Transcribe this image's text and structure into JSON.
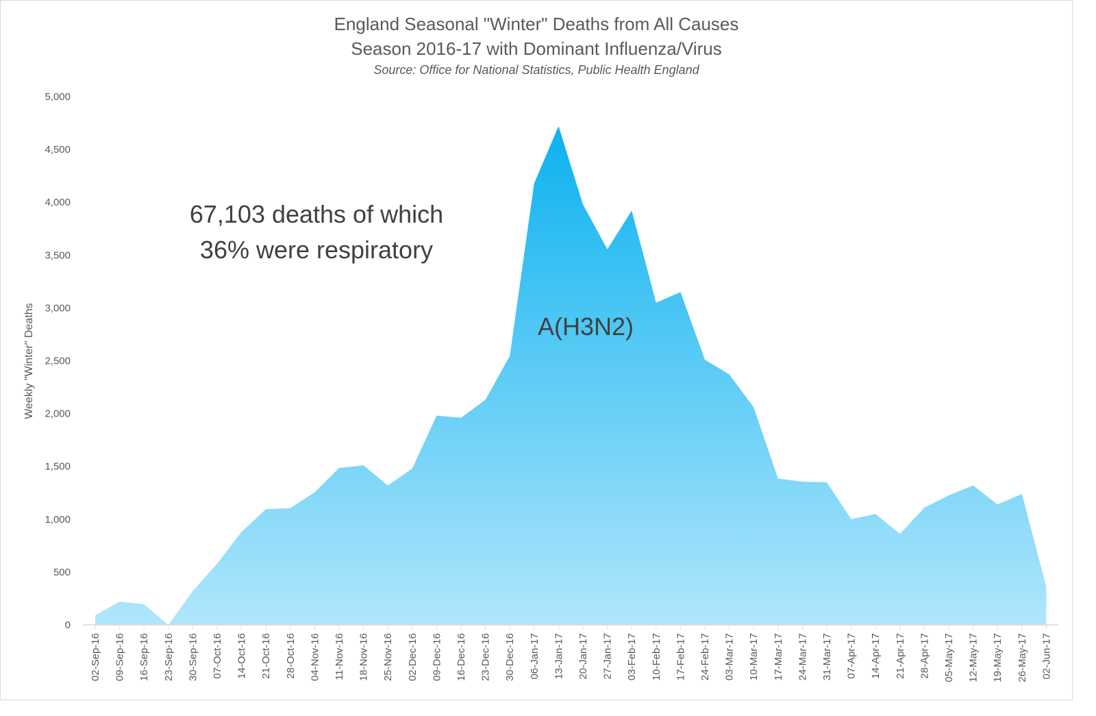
{
  "chart_data": {
    "type": "area",
    "title": "England Seasonal \"Winter\" Deaths from All Causes",
    "subtitle": "Season 2016-17 with Dominant Influenza/Virus",
    "source": "Source: Office for National Statistics, Public Health England",
    "xlabel": "",
    "ylabel": "Weekly \"Winter\" Deaths",
    "ylim": [
      0,
      5000
    ],
    "yticks": [
      "0",
      "500",
      "1,000",
      "1,500",
      "2,000",
      "2,500",
      "3,000",
      "3,500",
      "4,000",
      "4,500",
      "5,000"
    ],
    "categories": [
      "02-Sep-16",
      "09-Sep-16",
      "16-Sep-16",
      "23-Sep-16",
      "30-Sep-16",
      "07-Oct-16",
      "14-Oct-16",
      "21-Oct-16",
      "28-Oct-16",
      "04-Nov-16",
      "11-Nov-16",
      "18-Nov-16",
      "25-Nov-16",
      "02-Dec-16",
      "09-Dec-16",
      "16-Dec-16",
      "23-Dec-16",
      "30-Dec-16",
      "06-Jan-17",
      "13-Jan-17",
      "20-Jan-17",
      "27-Jan-17",
      "03-Feb-17",
      "10-Feb-17",
      "17-Feb-17",
      "24-Feb-17",
      "03-Mar-17",
      "10-Mar-17",
      "17-Mar-17",
      "24-Mar-17",
      "31-Mar-17",
      "07-Apr-17",
      "14-Apr-17",
      "21-Apr-17",
      "28-Apr-17",
      "05-May-17",
      "12-May-17",
      "19-May-17",
      "26-May-17",
      "02-Jun-17"
    ],
    "values": [
      90,
      220,
      195,
      0,
      320,
      580,
      880,
      1095,
      1105,
      1255,
      1485,
      1510,
      1320,
      1480,
      1980,
      1960,
      2130,
      2545,
      4180,
      4720,
      3980,
      3555,
      3920,
      3050,
      3150,
      2510,
      2370,
      2060,
      1385,
      1355,
      1350,
      1000,
      1050,
      860,
      1110,
      1225,
      1320,
      1140,
      1240,
      360
    ],
    "annotations": {
      "summary_line1": "67,103 deaths of which",
      "summary_line2": "36% were respiratory",
      "peak_label": "A(H3N2)"
    },
    "colors": {
      "fill_top": "#0cb2ef",
      "fill_bottom": "#b0e6fc",
      "axis": "#d9d9d9",
      "text": "#595959"
    },
    "grid": false,
    "legend": "none"
  }
}
